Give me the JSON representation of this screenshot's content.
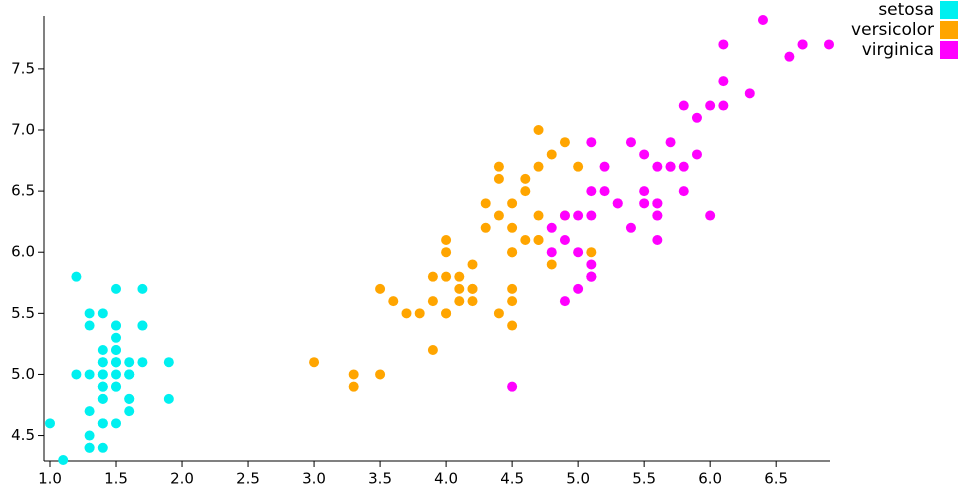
{
  "chart_data": {
    "type": "scatter",
    "xlim": [
      1.0,
      6.9
    ],
    "ylim": [
      4.3,
      7.9
    ],
    "xticks": [
      {
        "value": 1,
        "label": "1.0"
      },
      1.5,
      {
        "value": 2,
        "label": "2.0"
      },
      2.5,
      {
        "value": 3,
        "label": "3.0"
      },
      3.5,
      {
        "value": 4,
        "label": "4.0"
      },
      4.5,
      {
        "value": 5,
        "label": "5.0"
      },
      5.5,
      {
        "value": 6,
        "label": "6.0"
      },
      6.5
    ],
    "yticks": [
      4.5,
      {
        "value": 5,
        "label": "5.0"
      },
      5.5,
      {
        "value": 6,
        "label": "6.0"
      },
      6.5,
      {
        "value": 7,
        "label": "7.0"
      },
      7.5
    ],
    "legend": "top-right",
    "series": [
      {
        "name": "setosa",
        "color": "#00f0f0",
        "x": [
          1.4,
          1.4,
          1.3,
          1.5,
          1.4,
          1.7,
          1.4,
          1.5,
          1.4,
          1.5,
          1.5,
          1.6,
          1.4,
          1.1,
          1.2,
          1.5,
          1.3,
          1.4,
          1.7,
          1.5,
          1.7,
          1.5,
          1.0,
          1.7,
          1.9,
          1.6,
          1.6,
          1.5,
          1.4,
          1.6,
          1.6,
          1.5,
          1.5,
          1.4,
          1.5,
          1.2,
          1.3,
          1.4,
          1.3,
          1.5,
          1.3,
          1.3,
          1.3,
          1.6,
          1.9,
          1.4,
          1.6,
          1.4,
          1.5,
          1.4
        ],
        "values": [
          5.1,
          4.9,
          4.7,
          4.6,
          5.0,
          5.4,
          4.6,
          5.0,
          4.4,
          4.9,
          5.4,
          4.8,
          4.8,
          4.3,
          5.8,
          5.7,
          5.4,
          5.1,
          5.7,
          5.1,
          5.4,
          5.1,
          4.6,
          5.1,
          4.8,
          5.0,
          5.0,
          5.2,
          5.2,
          4.7,
          4.8,
          5.4,
          5.2,
          5.5,
          4.9,
          5.0,
          5.5,
          4.9,
          4.4,
          5.1,
          5.0,
          4.5,
          4.4,
          5.0,
          5.1,
          4.8,
          5.1,
          4.6,
          5.3,
          5.0
        ]
      },
      {
        "name": "versicolor",
        "color": "#ffa500",
        "x": [
          4.7,
          4.5,
          4.9,
          4.0,
          4.6,
          4.5,
          4.7,
          3.3,
          4.6,
          3.9,
          3.5,
          4.2,
          4.0,
          4.7,
          3.6,
          4.4,
          4.5,
          4.1,
          4.5,
          3.9,
          4.8,
          4.0,
          4.9,
          4.7,
          4.3,
          4.4,
          4.8,
          5.0,
          4.5,
          3.5,
          3.8,
          3.7,
          3.9,
          5.1,
          4.5,
          4.5,
          4.7,
          4.4,
          4.1,
          4.0,
          4.4,
          4.6,
          4.0,
          3.3,
          4.2,
          4.2,
          4.2,
          4.3,
          3.0,
          4.1
        ],
        "values": [
          7.0,
          6.4,
          6.9,
          5.5,
          6.5,
          5.7,
          6.3,
          4.9,
          6.6,
          5.2,
          5.0,
          5.9,
          6.0,
          6.1,
          5.6,
          6.7,
          5.6,
          5.8,
          6.2,
          5.6,
          5.9,
          6.1,
          6.3,
          6.1,
          6.4,
          6.6,
          6.8,
          6.7,
          6.0,
          5.7,
          5.5,
          5.5,
          5.8,
          6.0,
          5.4,
          6.0,
          6.7,
          6.3,
          5.6,
          5.5,
          5.5,
          6.1,
          5.8,
          5.0,
          5.6,
          5.7,
          5.7,
          6.2,
          5.1,
          5.7
        ]
      },
      {
        "name": "virginica",
        "color": "#ff00ff",
        "x": [
          6.0,
          5.1,
          5.9,
          5.6,
          5.8,
          6.6,
          4.5,
          6.3,
          5.8,
          6.1,
          5.1,
          5.3,
          5.5,
          5.0,
          5.1,
          5.3,
          5.5,
          6.7,
          6.9,
          5.0,
          5.7,
          4.9,
          6.7,
          4.9,
          5.7,
          6.0,
          4.8,
          4.9,
          5.6,
          5.8,
          6.1,
          6.4,
          5.6,
          5.1,
          5.6,
          6.1,
          5.6,
          5.5,
          4.8,
          5.4,
          5.6,
          5.1,
          5.1,
          5.9,
          5.7,
          5.2,
          5.0,
          5.2,
          5.4,
          5.1
        ],
        "values": [
          6.3,
          5.8,
          7.1,
          6.3,
          6.5,
          7.6,
          4.9,
          7.3,
          6.7,
          7.2,
          6.5,
          6.4,
          6.8,
          5.7,
          5.8,
          6.4,
          6.5,
          7.7,
          7.7,
          6.0,
          6.9,
          5.6,
          7.7,
          6.3,
          6.7,
          7.2,
          6.2,
          6.1,
          6.4,
          7.2,
          7.4,
          7.9,
          6.4,
          6.3,
          6.1,
          7.7,
          6.3,
          6.4,
          6.0,
          6.9,
          6.7,
          6.9,
          5.8,
          6.8,
          6.7,
          6.7,
          6.3,
          6.5,
          6.2,
          5.9
        ]
      }
    ]
  }
}
